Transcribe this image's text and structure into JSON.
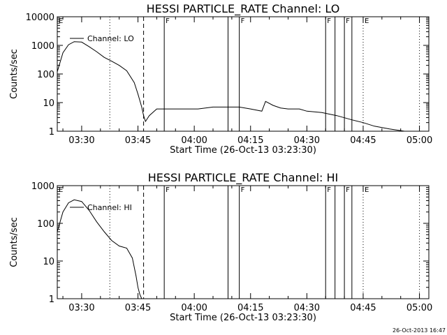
{
  "chart_data": [
    {
      "type": "line",
      "title": "HESSI PARTICLE_RATE Channel: LO",
      "xlabel": "Start Time (26-Oct-13 03:23:30)",
      "ylabel": "Counts/sec",
      "yscale": "log",
      "xlim": [
        "03:23:30",
        "05:02:30"
      ],
      "ylim": [
        1,
        10000
      ],
      "xtick_labels": [
        "03:30",
        "03:45",
        "04:00",
        "04:15",
        "04:30",
        "04:45",
        "05:00"
      ],
      "ytick_labels": [
        "1",
        "10",
        "100",
        "1000",
        "10000"
      ],
      "legend": {
        "label": "Channel: LO",
        "placement": "top-left"
      },
      "series": [
        {
          "name": "Channel: LO",
          "x": [
            "03:23:30",
            "03:25:00",
            "03:26:30",
            "03:28:00",
            "03:30:00",
            "03:32:00",
            "03:34:00",
            "03:36:00",
            "03:38:00",
            "03:40:00",
            "03:42:00",
            "03:44:00",
            "03:45:00",
            "03:46:00",
            "03:46:30",
            "03:47:00",
            "03:48:00",
            "03:50:00",
            "03:52:00",
            "03:55:00",
            "03:58:00",
            "04:01:00",
            "04:05:00",
            "04:08:00",
            "04:12:00",
            "04:15:00",
            "04:18:00",
            "04:19:00",
            "04:21:00",
            "04:23:00",
            "04:25:00",
            "04:28:00",
            "04:30:00",
            "04:34:00",
            "04:38:00",
            "04:42:00",
            "04:45:00",
            "04:48:00",
            "04:52:00",
            "04:56:00"
          ],
          "values": [
            120,
            550,
            1050,
            1350,
            1300,
            900,
            600,
            380,
            280,
            200,
            130,
            50,
            20,
            7,
            3.5,
            2.2,
            3.5,
            6,
            6,
            6,
            6,
            6,
            7,
            7,
            7,
            6,
            5,
            11,
            8,
            6.5,
            6,
            6,
            5,
            4.5,
            3.5,
            2.5,
            2,
            1.5,
            1.2,
            1
          ]
        }
      ],
      "markers": [
        {
          "time": "03:37:30",
          "style": "dotted"
        },
        {
          "time": "03:46:30",
          "style": "dashed"
        },
        {
          "time": "03:52:00",
          "style": "solid",
          "label": "F"
        },
        {
          "time": "04:09:00",
          "style": "solid"
        },
        {
          "time": "04:12:00",
          "style": "solid",
          "label": "F"
        },
        {
          "time": "04:35:00",
          "style": "solid",
          "label": "F"
        },
        {
          "time": "04:37:30",
          "style": "solid"
        },
        {
          "time": "04:40:00",
          "style": "solid",
          "label": "F"
        },
        {
          "time": "04:42:00",
          "style": "solid"
        },
        {
          "time": "04:45:00",
          "style": "dotted",
          "label": "E"
        },
        {
          "time": "05:00:00",
          "style": "dotted"
        }
      ],
      "start_flag": "E"
    },
    {
      "type": "line",
      "title": "HESSI PARTICLE_RATE Channel: HI",
      "xlabel": "Start Time (26-Oct-13 03:23:30)",
      "ylabel": "Counts/sec",
      "yscale": "log",
      "xlim": [
        "03:23:30",
        "05:02:30"
      ],
      "ylim": [
        1,
        1000
      ],
      "xtick_labels": [
        "03:30",
        "03:45",
        "04:00",
        "04:15",
        "04:30",
        "04:45",
        "05:00"
      ],
      "ytick_labels": [
        "1",
        "10",
        "100",
        "1000"
      ],
      "legend": {
        "label": "Channel: HI",
        "placement": "top-left"
      },
      "series": [
        {
          "name": "Channel: HI",
          "x": [
            "03:23:30",
            "03:25:00",
            "03:26:30",
            "03:28:00",
            "03:30:00",
            "03:32:00",
            "03:34:00",
            "03:36:00",
            "03:38:00",
            "03:40:00",
            "03:42:00",
            "03:43:30",
            "03:44:30",
            "03:45:00",
            "03:45:30",
            "03:46:00"
          ],
          "values": [
            60,
            200,
            350,
            420,
            380,
            220,
            110,
            60,
            35,
            25,
            22,
            12,
            4,
            2,
            1.3,
            1
          ]
        }
      ],
      "markers": [
        {
          "time": "03:37:30",
          "style": "dotted"
        },
        {
          "time": "03:46:30",
          "style": "dashed"
        },
        {
          "time": "03:52:00",
          "style": "solid",
          "label": "F"
        },
        {
          "time": "04:09:00",
          "style": "solid"
        },
        {
          "time": "04:12:00",
          "style": "solid",
          "label": "F"
        },
        {
          "time": "04:35:00",
          "style": "solid",
          "label": "F"
        },
        {
          "time": "04:37:30",
          "style": "solid"
        },
        {
          "time": "04:40:00",
          "style": "solid",
          "label": "F"
        },
        {
          "time": "04:42:00",
          "style": "solid"
        },
        {
          "time": "04:45:00",
          "style": "dotted",
          "label": "E"
        },
        {
          "time": "05:00:00",
          "style": "dotted"
        }
      ],
      "start_flag": "E"
    }
  ],
  "footer": "26-Oct-2013 16:47"
}
